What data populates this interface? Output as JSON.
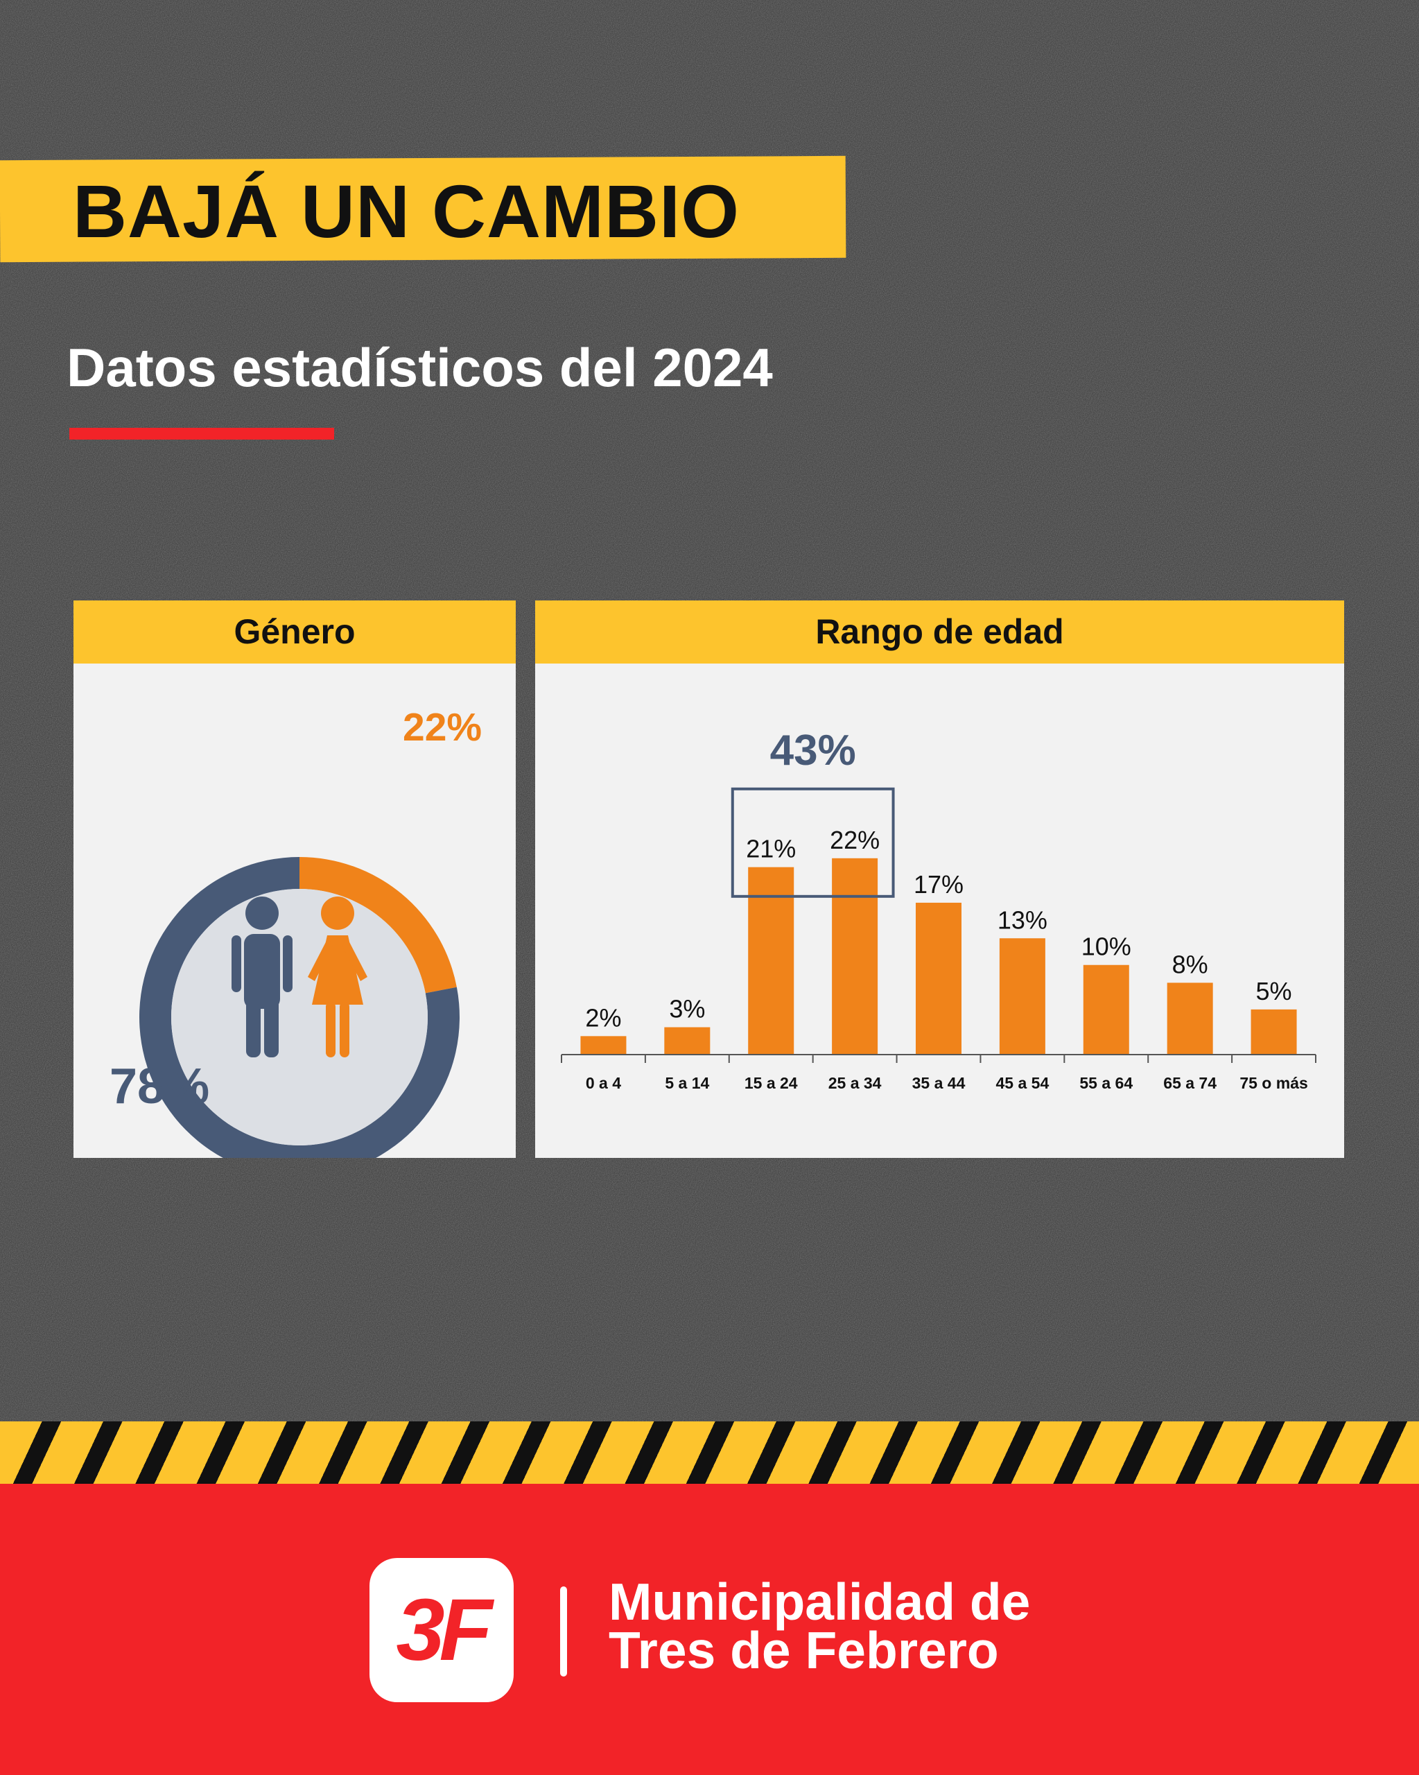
{
  "header": {
    "title": "BAJÁ UN CAMBIO",
    "subtitle": "Datos estadísticos del 2024"
  },
  "gender_panel": {
    "heading": "Género",
    "female_label": "22%",
    "male_label": "78%"
  },
  "age_panel": {
    "heading": "Rango de edad",
    "highlight_label": "43%"
  },
  "footer": {
    "logo_text": "3F",
    "org_line1": "Municipalidad de",
    "org_line2": "Tres de Febrero"
  },
  "colors": {
    "yellow": "#fdc42d",
    "orange": "#f0831a",
    "navy": "#485a77",
    "red": "#f22328",
    "panel": "#f2f2f2"
  },
  "chart_data": [
    {
      "type": "pie",
      "title": "Género",
      "categories": [
        "female",
        "male"
      ],
      "values": [
        22,
        78
      ],
      "labels": [
        "22%",
        "78%"
      ],
      "colors": [
        "#f0831a",
        "#485a77"
      ],
      "icons": [
        "man-icon",
        "woman-icon"
      ]
    },
    {
      "type": "bar",
      "title": "Rango de edad",
      "categories": [
        "0 a 4",
        "5 a 14",
        "15 a 24",
        "25 a 34",
        "35 a 44",
        "45 a 54",
        "55 a 64",
        "65 a 74",
        "75 o más"
      ],
      "values": [
        2,
        3,
        21,
        22,
        17,
        13,
        10,
        8,
        5
      ],
      "labels": [
        "2%",
        "3%",
        "21%",
        "22%",
        "17%",
        "13%",
        "10%",
        "8%",
        "5%"
      ],
      "ylim": [
        0,
        30
      ],
      "grid": false,
      "highlight": {
        "categories": [
          "15 a 24",
          "25 a 34"
        ],
        "label": "43%"
      }
    }
  ]
}
